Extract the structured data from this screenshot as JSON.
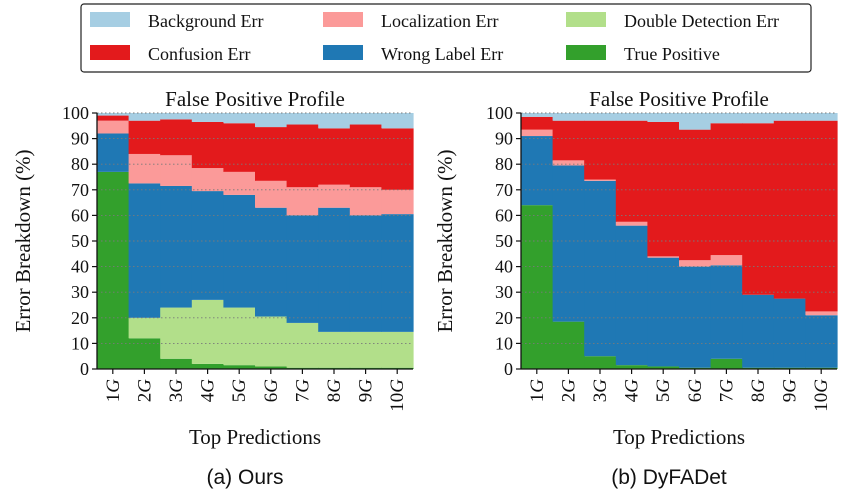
{
  "legend": {
    "entries": [
      {
        "label": "Background Err",
        "color": "#a6cee3"
      },
      {
        "label": "Localization Err",
        "color": "#fb9a99"
      },
      {
        "label": "Double Detection Err",
        "color": "#b2df8a"
      },
      {
        "label": "Confusion Err",
        "color": "#e31a1c"
      },
      {
        "label": "Wrong Label Err",
        "color": "#1f78b4"
      },
      {
        "label": "True Positive",
        "color": "#33a02c"
      }
    ]
  },
  "chart_data": [
    {
      "type": "bar",
      "stacked": true,
      "title": "False Positive Profile",
      "caption": "(a) Ours",
      "xlabel": "Top Predictions",
      "ylabel": "Error Breakdown (%)",
      "ylim": [
        0,
        100
      ],
      "yticks": [
        0,
        10,
        20,
        30,
        40,
        50,
        60,
        70,
        80,
        90,
        100
      ],
      "grid": "horizontal dotted",
      "categories": [
        "1G",
        "2G",
        "3G",
        "4G",
        "5G",
        "6G",
        "7G",
        "8G",
        "9G",
        "10G"
      ],
      "series": [
        {
          "name": "True Positive",
          "color": "#33a02c",
          "values": [
            77,
            12,
            4,
            2,
            1.5,
            1,
            0.5,
            0.5,
            0.5,
            0.5
          ]
        },
        {
          "name": "Double Detection Err",
          "color": "#b2df8a",
          "values": [
            0,
            8,
            20,
            25,
            22.5,
            19.5,
            17.5,
            14,
            14,
            14
          ]
        },
        {
          "name": "Wrong Label Err",
          "color": "#1f78b4",
          "values": [
            15,
            52.5,
            47.5,
            42.5,
            44,
            42.5,
            42,
            48.5,
            45.5,
            46
          ]
        },
        {
          "name": "Localization Err",
          "color": "#fb9a99",
          "values": [
            5,
            11.5,
            12,
            9,
            9,
            10.5,
            11,
            9,
            11,
            9.5
          ]
        },
        {
          "name": "Confusion Err",
          "color": "#e31a1c",
          "values": [
            2,
            13,
            14,
            18,
            19,
            21,
            24.5,
            22,
            24.5,
            24
          ]
        },
        {
          "name": "Background Err",
          "color": "#a6cee3",
          "values": [
            1,
            3,
            2.5,
            3.5,
            4,
            5.5,
            4.5,
            6,
            4.5,
            6
          ]
        }
      ]
    },
    {
      "type": "bar",
      "stacked": true,
      "title": "False Positive Profile",
      "caption": "(b) DyFADet",
      "xlabel": "Top Predictions",
      "ylabel": "Error Breakdown (%)",
      "ylim": [
        0,
        100
      ],
      "yticks": [
        0,
        10,
        20,
        30,
        40,
        50,
        60,
        70,
        80,
        90,
        100
      ],
      "grid": "horizontal dotted",
      "categories": [
        "1G",
        "2G",
        "3G",
        "4G",
        "5G",
        "6G",
        "7G",
        "8G",
        "9G",
        "10G"
      ],
      "series": [
        {
          "name": "True Positive",
          "color": "#33a02c",
          "values": [
            64,
            18.5,
            5,
            1.5,
            1,
            0.5,
            4,
            0.5,
            0.5,
            0.5
          ]
        },
        {
          "name": "Double Detection Err",
          "color": "#b2df8a",
          "values": [
            0,
            0,
            0,
            0,
            0,
            0,
            0,
            0,
            0,
            0
          ]
        },
        {
          "name": "Wrong Label Err",
          "color": "#1f78b4",
          "values": [
            27,
            61,
            68.5,
            54.5,
            42.5,
            39.5,
            36.5,
            28.5,
            27,
            20.5
          ]
        },
        {
          "name": "Localization Err",
          "color": "#fb9a99",
          "values": [
            2.5,
            2,
            0.5,
            1.5,
            0.5,
            2.5,
            4,
            0,
            0,
            1.5
          ]
        },
        {
          "name": "Confusion Err",
          "color": "#e31a1c",
          "values": [
            5,
            15.5,
            23,
            39.5,
            52.5,
            51,
            51.5,
            67,
            69.5,
            74.5
          ]
        },
        {
          "name": "Background Err",
          "color": "#a6cee3",
          "values": [
            1.5,
            3,
            3,
            3,
            3.5,
            6.5,
            4,
            4,
            3,
            3
          ]
        }
      ]
    }
  ]
}
